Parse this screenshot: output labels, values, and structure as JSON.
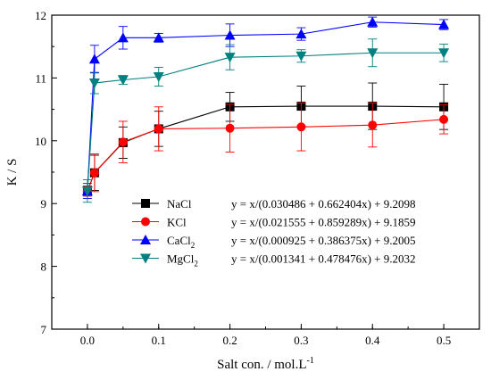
{
  "chart_data": {
    "type": "line",
    "title": "",
    "xlabel": "Salt con. / mol.L",
    "xlabel_sup": "-1",
    "ylabel": "K / S",
    "xlim": [
      -0.05,
      0.55
    ],
    "ylim": [
      7,
      12
    ],
    "x_ticks": [
      0.0,
      0.1,
      0.2,
      0.3,
      0.4,
      0.5
    ],
    "x_tick_labels": [
      "0.0",
      "0.1",
      "0.2",
      "0.3",
      "0.4",
      "0.5"
    ],
    "y_ticks": [
      7,
      8,
      9,
      10,
      11,
      12
    ],
    "y_tick_labels": [
      "7",
      "8",
      "9",
      "10",
      "11",
      "12"
    ],
    "grid": false,
    "legend_position": "center-right",
    "x": [
      0.0,
      0.01,
      0.05,
      0.1,
      0.2,
      0.3,
      0.4,
      0.5
    ],
    "series": [
      {
        "name": "NaCl",
        "name_base": "NaCl",
        "name_sub": "",
        "equation": "y = x/(0.030486 + 0.662404x) + 9.2098",
        "color": "#000000",
        "marker": "square",
        "values": [
          9.2,
          9.49,
          9.97,
          10.19,
          10.54,
          10.55,
          10.55,
          10.54
        ],
        "errors": [
          0.08,
          0.28,
          0.25,
          0.28,
          0.23,
          0.32,
          0.37,
          0.36
        ]
      },
      {
        "name": "KCl",
        "name_base": "KCl",
        "name_sub": "",
        "equation": "y = x/(0.021555 + 0.859289x) + 9.1859",
        "color": "#ff0000",
        "marker": "circle",
        "values": [
          9.2,
          9.49,
          9.98,
          10.19,
          10.2,
          10.22,
          10.25,
          10.34
        ],
        "errors": [
          0.08,
          0.3,
          0.33,
          0.35,
          0.38,
          0.38,
          0.35,
          0.23
        ]
      },
      {
        "name": "CaCl2",
        "name_base": "CaCl",
        "name_sub": "2",
        "equation": "y = x/(0.000925 + 0.386375x) + 9.2005",
        "color": "#0000ff",
        "marker": "triangle-up",
        "values": [
          9.2,
          11.3,
          11.64,
          11.64,
          11.68,
          11.7,
          11.89,
          11.85
        ],
        "errors": [
          0.12,
          0.22,
          0.18,
          0.07,
          0.18,
          0.1,
          0.08,
          0.08
        ]
      },
      {
        "name": "MgCl2",
        "name_base": "MgCl",
        "name_sub": "2",
        "equation": "y = x/(0.001341 + 0.478476x) + 9.2032",
        "color": "#008080",
        "marker": "triangle-down",
        "values": [
          9.2,
          10.92,
          10.97,
          11.02,
          11.33,
          11.35,
          11.4,
          11.4
        ],
        "errors": [
          0.18,
          0.17,
          0.07,
          0.15,
          0.2,
          0.1,
          0.22,
          0.14
        ]
      }
    ]
  }
}
